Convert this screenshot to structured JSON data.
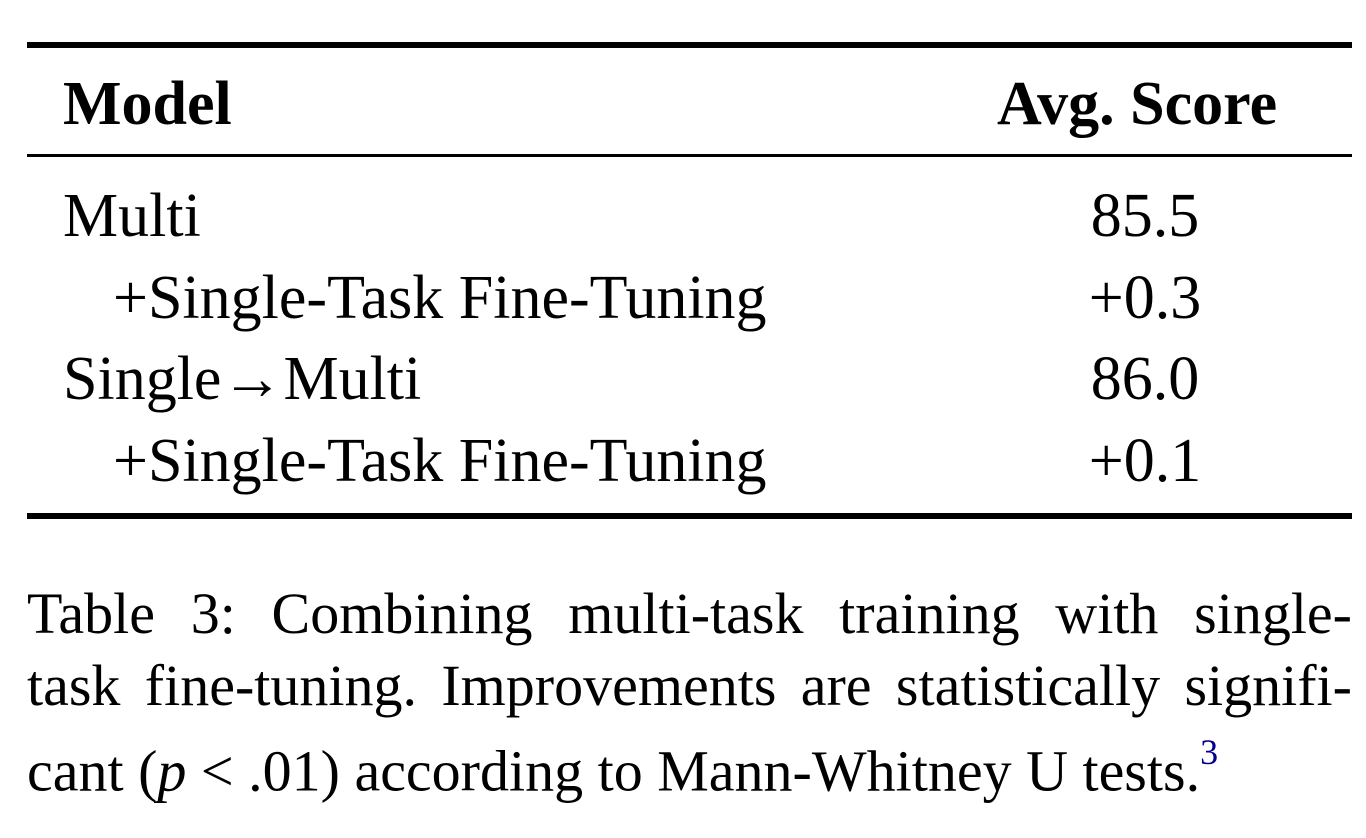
{
  "table": {
    "headers": {
      "model": "Model",
      "score": "Avg. Score"
    },
    "rows": [
      {
        "model": "Multi",
        "score": "85.5",
        "indent": false
      },
      {
        "model": "+Single-Task Fine-Tuning",
        "score": "+0.3",
        "indent": true
      },
      {
        "model": "Single→Multi",
        "score": "86.0",
        "indent": false
      },
      {
        "model": "+Single-Task Fine-Tuning",
        "score": "+0.1",
        "indent": true
      }
    ]
  },
  "caption": {
    "line1": "Table 3:  Combining multi-task training with single-",
    "line2": "task fine-tuning. Improvements are statistically signifi-",
    "line3_pre": "cant (",
    "line3_var": "p",
    "line3_post": " < .01) according to Mann-Whitney U tests.",
    "footnote_marker": "3"
  },
  "colors": {
    "text": "#000000",
    "footnote_link": "#00008b"
  }
}
